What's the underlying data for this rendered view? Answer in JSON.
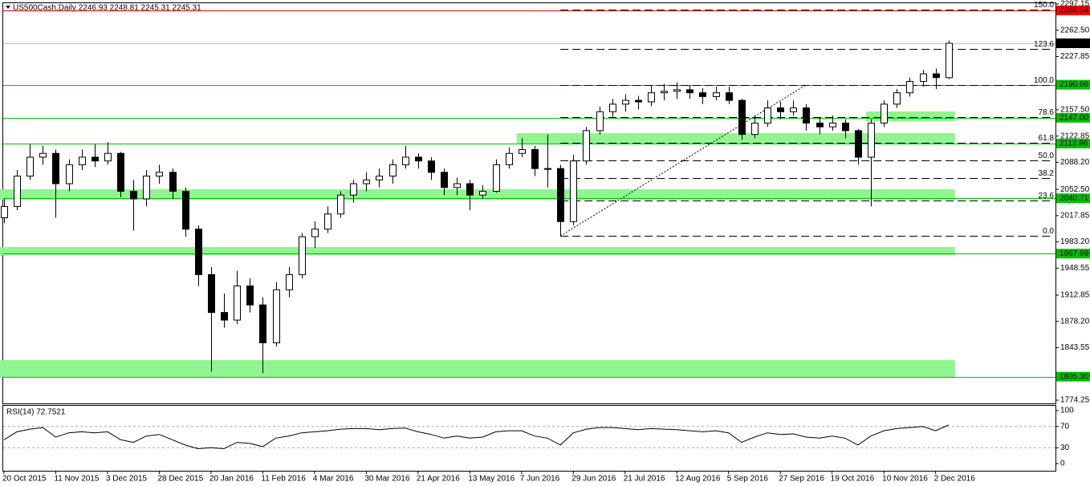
{
  "chart_data": [
    {
      "type": "candlestick",
      "title": "US500Cash,Daily  2246.93 2248.81 2245.31 2245.31",
      "categories": [
        "20 Oct 2015",
        null,
        null,
        null,
        "11 Nov 2015",
        null,
        null,
        null,
        "3 Dec 2015",
        null,
        null,
        null,
        "28 Dec 2015",
        null,
        null,
        null,
        "20 Jan 2016",
        null,
        null,
        null,
        "11 Feb 2016",
        null,
        null,
        null,
        "4 Mar 2016",
        null,
        null,
        null,
        "30 Mar 2016",
        null,
        null,
        null,
        "21 Apr 2016",
        null,
        null,
        null,
        "13 May 2016",
        null,
        null,
        null,
        "7 Jun 2016",
        null,
        null,
        null,
        "29 Jun 2016",
        null,
        null,
        null,
        "21 Jul 2016",
        null,
        null,
        null,
        "12 Aug 2016",
        null,
        null,
        null,
        "5 Sep 2016",
        null,
        null,
        null,
        "27 Sep 2016",
        null,
        null,
        null,
        "19 Oct 2016",
        null,
        null,
        null,
        "10 Nov 2016",
        null,
        null,
        null,
        "2 Dec 2016",
        null
      ],
      "open": [
        2015,
        2030,
        2070,
        2095,
        2100,
        2060,
        2085,
        2095,
        2090,
        2100,
        2050,
        2040,
        2070,
        2075,
        2050,
        2000,
        1940,
        1890,
        1880,
        1925,
        1900,
        1850,
        1920,
        1940,
        1990,
        2000,
        2020,
        2045,
        2060,
        2065,
        2070,
        2085,
        2095,
        2090,
        2075,
        2055,
        2060,
        2045,
        2050,
        2085,
        2100,
        2105,
        2080,
        2080,
        2010,
        2090,
        2130,
        2155,
        2165,
        2170,
        2168,
        2180,
        2182,
        2184,
        2180,
        2175,
        2180,
        2170,
        2125,
        2140,
        2160,
        2155,
        2160,
        2140,
        2135,
        2140,
        2130,
        2095,
        2140,
        2165,
        2180,
        2195,
        2205,
        2200
      ],
      "high": [
        2040,
        2078,
        2112,
        2110,
        2105,
        2092,
        2105,
        2112,
        2115,
        2102,
        2065,
        2078,
        2085,
        2080,
        2055,
        2005,
        1950,
        1915,
        1945,
        1935,
        1910,
        1930,
        1950,
        1995,
        2010,
        2030,
        2050,
        2065,
        2075,
        2080,
        2092,
        2110,
        2100,
        2095,
        2080,
        2068,
        2065,
        2058,
        2092,
        2108,
        2120,
        2110,
        2125,
        2085,
        2098,
        2135,
        2162,
        2172,
        2178,
        2176,
        2190,
        2192,
        2194,
        2190,
        2186,
        2188,
        2188,
        2172,
        2150,
        2170,
        2168,
        2170,
        2165,
        2148,
        2150,
        2145,
        2132,
        2145,
        2170,
        2185,
        2200,
        2210,
        2212,
        2249
      ],
      "low": [
        2008,
        2025,
        2065,
        2085,
        2015,
        2050,
        2078,
        2082,
        2085,
        2042,
        1998,
        2030,
        2060,
        2040,
        1990,
        1925,
        1812,
        1870,
        1875,
        1890,
        1810,
        1845,
        1910,
        1935,
        1975,
        1995,
        2015,
        2035,
        2050,
        2055,
        2060,
        2080,
        2080,
        2065,
        2045,
        2045,
        2025,
        2040,
        2048,
        2080,
        2095,
        2070,
        2055,
        1991,
        2005,
        2085,
        2125,
        2148,
        2155,
        2158,
        2162,
        2170,
        2172,
        2172,
        2165,
        2170,
        2165,
        2118,
        2120,
        2135,
        2145,
        2150,
        2130,
        2125,
        2130,
        2120,
        2085,
        2030,
        2135,
        2160,
        2175,
        2188,
        2185,
        2198
      ],
      "close": [
        2030,
        2070,
        2095,
        2100,
        2060,
        2085,
        2095,
        2090,
        2100,
        2050,
        2040,
        2070,
        2075,
        2050,
        2000,
        1940,
        1890,
        1880,
        1925,
        1900,
        1850,
        1920,
        1940,
        1990,
        2000,
        2020,
        2045,
        2060,
        2065,
        2070,
        2085,
        2095,
        2090,
        2075,
        2055,
        2060,
        2045,
        2050,
        2085,
        2100,
        2105,
        2080,
        2080,
        2010,
        2090,
        2130,
        2155,
        2165,
        2170,
        2168,
        2180,
        2182,
        2184,
        2180,
        2175,
        2180,
        2170,
        2125,
        2140,
        2160,
        2155,
        2160,
        2140,
        2135,
        2140,
        2130,
        2095,
        2140,
        2165,
        2180,
        2195,
        2205,
        2200,
        2245.31
      ],
      "ylim": [
        1774.25,
        2297.15
      ],
      "yticks": [
        2297.15,
        {
          "value": 2262.5,
          "label": "2262.50"
        },
        2227.85,
        {
          "value": 2157.5,
          "label": "2157.50"
        },
        2122.85,
        {
          "value": 2088.2,
          "label": "2088.20"
        },
        {
          "value": 2052.5,
          "label": "2052.50"
        },
        2017.85,
        {
          "value": 1983.2,
          "label": "1983.20"
        },
        1948.55,
        1912.85,
        {
          "value": 1878.2,
          "label": "1878.20"
        },
        1843.55,
        1774.25
      ],
      "levels": [
        {
          "value": 2288.64,
          "label": "2288.64",
          "color": "#ff0000"
        },
        {
          "value": 2245.31,
          "label": "2245.31",
          "color": "#000000"
        },
        {
          "value": 2190.66,
          "label": "2190.66",
          "color": "#00c000"
        },
        {
          "value": 2147,
          "label": "2147.00",
          "color": "#00c000"
        },
        {
          "value": 2112.96,
          "label": "2112.96",
          "color": "#00c000"
        },
        {
          "value": 2040.71,
          "label": "2040.71",
          "color": "#00c000"
        },
        {
          "value": 1967.69,
          "label": "1967.69",
          "color": "#00c000"
        },
        {
          "value": 1805.3,
          "label": "1805.30",
          "color": "#00c000"
        }
      ],
      "zones": [
        {
          "from": 2155.3,
          "to": 2142.6,
          "start": 67
        },
        {
          "from": 2126.7,
          "to": 2111.9,
          "start": 40
        },
        {
          "from": 2052.6,
          "to": 2038.9,
          "start": 0
        },
        {
          "from": 1976.4,
          "to": 1965.8,
          "start": 0
        },
        {
          "from": 1827.1,
          "to": 1804.9,
          "start": 0
        }
      ],
      "zone_color": "#90f590",
      "fib": {
        "low": 1991,
        "high": 2190.5,
        "low_at": 43,
        "high_at": 62,
        "levels": [
          {
            "ratio": 150,
            "label": "150.0"
          },
          {
            "ratio": 123.6,
            "label": "123.6"
          },
          {
            "ratio": 100,
            "label": "100.0"
          },
          {
            "ratio": 78.6,
            "label": "78.6"
          },
          {
            "ratio": 61.8,
            "label": "61.8"
          },
          {
            "ratio": 50,
            "label": "50.0"
          },
          {
            "ratio": 38.2,
            "label": "38.2"
          },
          {
            "ratio": 23.6,
            "label": "23.6"
          },
          {
            "ratio": 0,
            "label": "0.0"
          }
        ]
      }
    },
    {
      "type": "line",
      "title": "RSI(14) 72.7521",
      "color": "#000000",
      "values": [
        45,
        60,
        65,
        68,
        50,
        58,
        60,
        58,
        60,
        45,
        40,
        52,
        55,
        45,
        35,
        28,
        30,
        28,
        40,
        38,
        32,
        48,
        52,
        58,
        60,
        62,
        65,
        66,
        66,
        64,
        66,
        67,
        60,
        55,
        48,
        52,
        48,
        50,
        60,
        62,
        62,
        52,
        48,
        35,
        58,
        65,
        68,
        68,
        66,
        64,
        66,
        65,
        64,
        62,
        60,
        62,
        58,
        40,
        50,
        58,
        55,
        56,
        50,
        48,
        52,
        48,
        35,
        52,
        62,
        66,
        68,
        70,
        62,
        72.75
      ],
      "ylim": [
        0,
        100
      ],
      "yticks": [
        100,
        70,
        30,
        0
      ],
      "guides": [
        70,
        30
      ]
    }
  ]
}
